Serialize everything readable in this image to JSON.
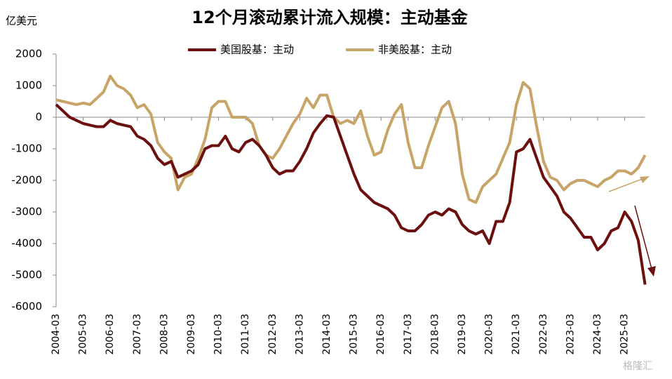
{
  "chart_data": {
    "type": "line",
    "title": "12个月滚动累计流入规模：主动基金",
    "y_label": "亿美元",
    "watermark": "格隆汇",
    "categories": [
      "2004-03",
      null,
      null,
      null,
      "2005-03",
      null,
      null,
      null,
      "2006-03",
      null,
      null,
      null,
      "2007-03",
      null,
      null,
      null,
      "2008-03",
      null,
      null,
      null,
      "2009-03",
      null,
      null,
      null,
      "2010-03",
      null,
      null,
      null,
      "2011-03",
      null,
      null,
      null,
      "2012-03",
      null,
      null,
      null,
      "2013-03",
      null,
      null,
      null,
      "2014-03",
      null,
      null,
      null,
      "2015-03",
      null,
      null,
      null,
      "2016-03",
      null,
      null,
      null,
      "2017-03",
      null,
      null,
      null,
      "2018-03",
      null,
      null,
      null,
      "2019-03",
      null,
      null,
      null,
      "2020-03",
      null,
      null,
      null,
      "2021-03",
      null,
      null,
      null,
      "2022-03",
      null,
      null,
      null,
      "2023-03",
      null,
      null,
      null,
      "2024-03",
      null,
      null,
      null,
      "2025-03",
      null,
      null,
      null
    ],
    "series": [
      {
        "name": "美国股基：主动",
        "color": "#6b0f0f",
        "values": [
          400,
          200,
          0,
          -100,
          -200,
          -250,
          -300,
          -300,
          -100,
          -200,
          -250,
          -300,
          -600,
          -700,
          -900,
          -1300,
          -1500,
          -1400,
          -1900,
          -1800,
          -1700,
          -1500,
          -1000,
          -900,
          -900,
          -600,
          -1000,
          -1100,
          -800,
          -700,
          -900,
          -1200,
          -1600,
          -1800,
          -1700,
          -1700,
          -1400,
          -1000,
          -500,
          -200,
          50,
          0,
          -600,
          -1200,
          -1800,
          -2300,
          -2500,
          -2700,
          -2800,
          -2900,
          -3100,
          -3500,
          -3600,
          -3600,
          -3400,
          -3100,
          -3000,
          -3100,
          -2900,
          -3000,
          -3400,
          -3600,
          -3700,
          -3600,
          -4000,
          -3300,
          -3300,
          -2700,
          -1100,
          -1000,
          -700,
          -1300,
          -1900,
          -2200,
          -2500,
          -3000,
          -3200,
          -3500,
          -3800,
          -3800,
          -4200,
          -4000,
          -3600,
          -3500,
          -3000,
          -3300,
          -3900,
          -5300
        ]
      },
      {
        "name": "非美股基：主动",
        "color": "#c9a468",
        "values": [
          550,
          500,
          450,
          400,
          450,
          400,
          600,
          800,
          1300,
          1000,
          900,
          700,
          300,
          400,
          100,
          -800,
          -1100,
          -1300,
          -2300,
          -1900,
          -1800,
          -1300,
          -700,
          300,
          500,
          500,
          0,
          0,
          0,
          -200,
          -900,
          -1200,
          -1300,
          -1000,
          -600,
          -200,
          100,
          600,
          300,
          700,
          700,
          0,
          -200,
          -100,
          -200,
          200,
          -600,
          -1200,
          -1100,
          -400,
          100,
          400,
          -800,
          -1600,
          -1600,
          -900,
          -300,
          300,
          500,
          -200,
          -1800,
          -2600,
          -2700,
          -2200,
          -2000,
          -1800,
          -1300,
          -800,
          400,
          1100,
          900,
          -300,
          -1400,
          -1900,
          -2000,
          -2300,
          -2100,
          -2000,
          -2000,
          -2100,
          -2200,
          -2000,
          -1900,
          -1700,
          -1700,
          -1800,
          -1600,
          -1200
        ]
      }
    ],
    "ylim": [
      -6000,
      2000
    ],
    "yticks": [
      -6000,
      -5000,
      -4000,
      -3000,
      -2000,
      -1000,
      0,
      1000,
      2000
    ],
    "legend": "top"
  }
}
